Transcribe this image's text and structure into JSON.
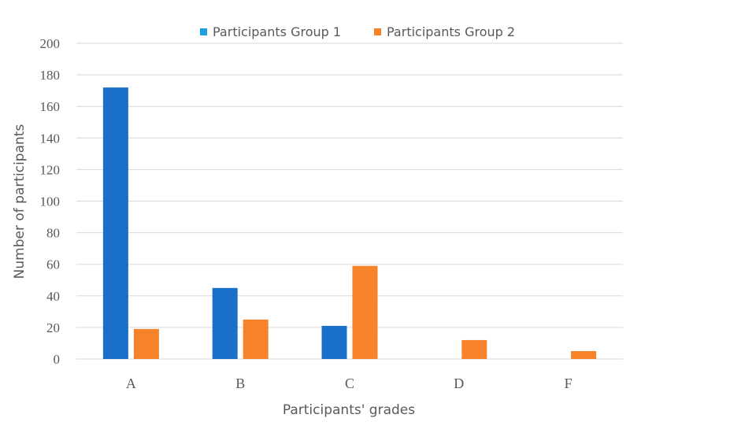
{
  "chart_data": {
    "type": "bar",
    "categories": [
      "A",
      "B",
      "C",
      "D",
      "F"
    ],
    "series": [
      {
        "name": "Participants Group 1",
        "color": "#1a70c8",
        "legend_color": "#1ba1e2",
        "values": [
          172,
          45,
          21,
          0,
          0
        ]
      },
      {
        "name": "Participants Group 2",
        "color": "#f6832a",
        "legend_color": "#f6832a",
        "values": [
          19,
          25,
          59,
          12,
          5
        ]
      }
    ],
    "xlabel": "Participants' grades",
    "ylabel": "Number of participants",
    "ylim": [
      0,
      200
    ],
    "yticks": [
      0,
      20,
      40,
      60,
      80,
      100,
      120,
      140,
      160,
      180,
      200
    ],
    "grid": true,
    "legend_position": "top-center"
  }
}
